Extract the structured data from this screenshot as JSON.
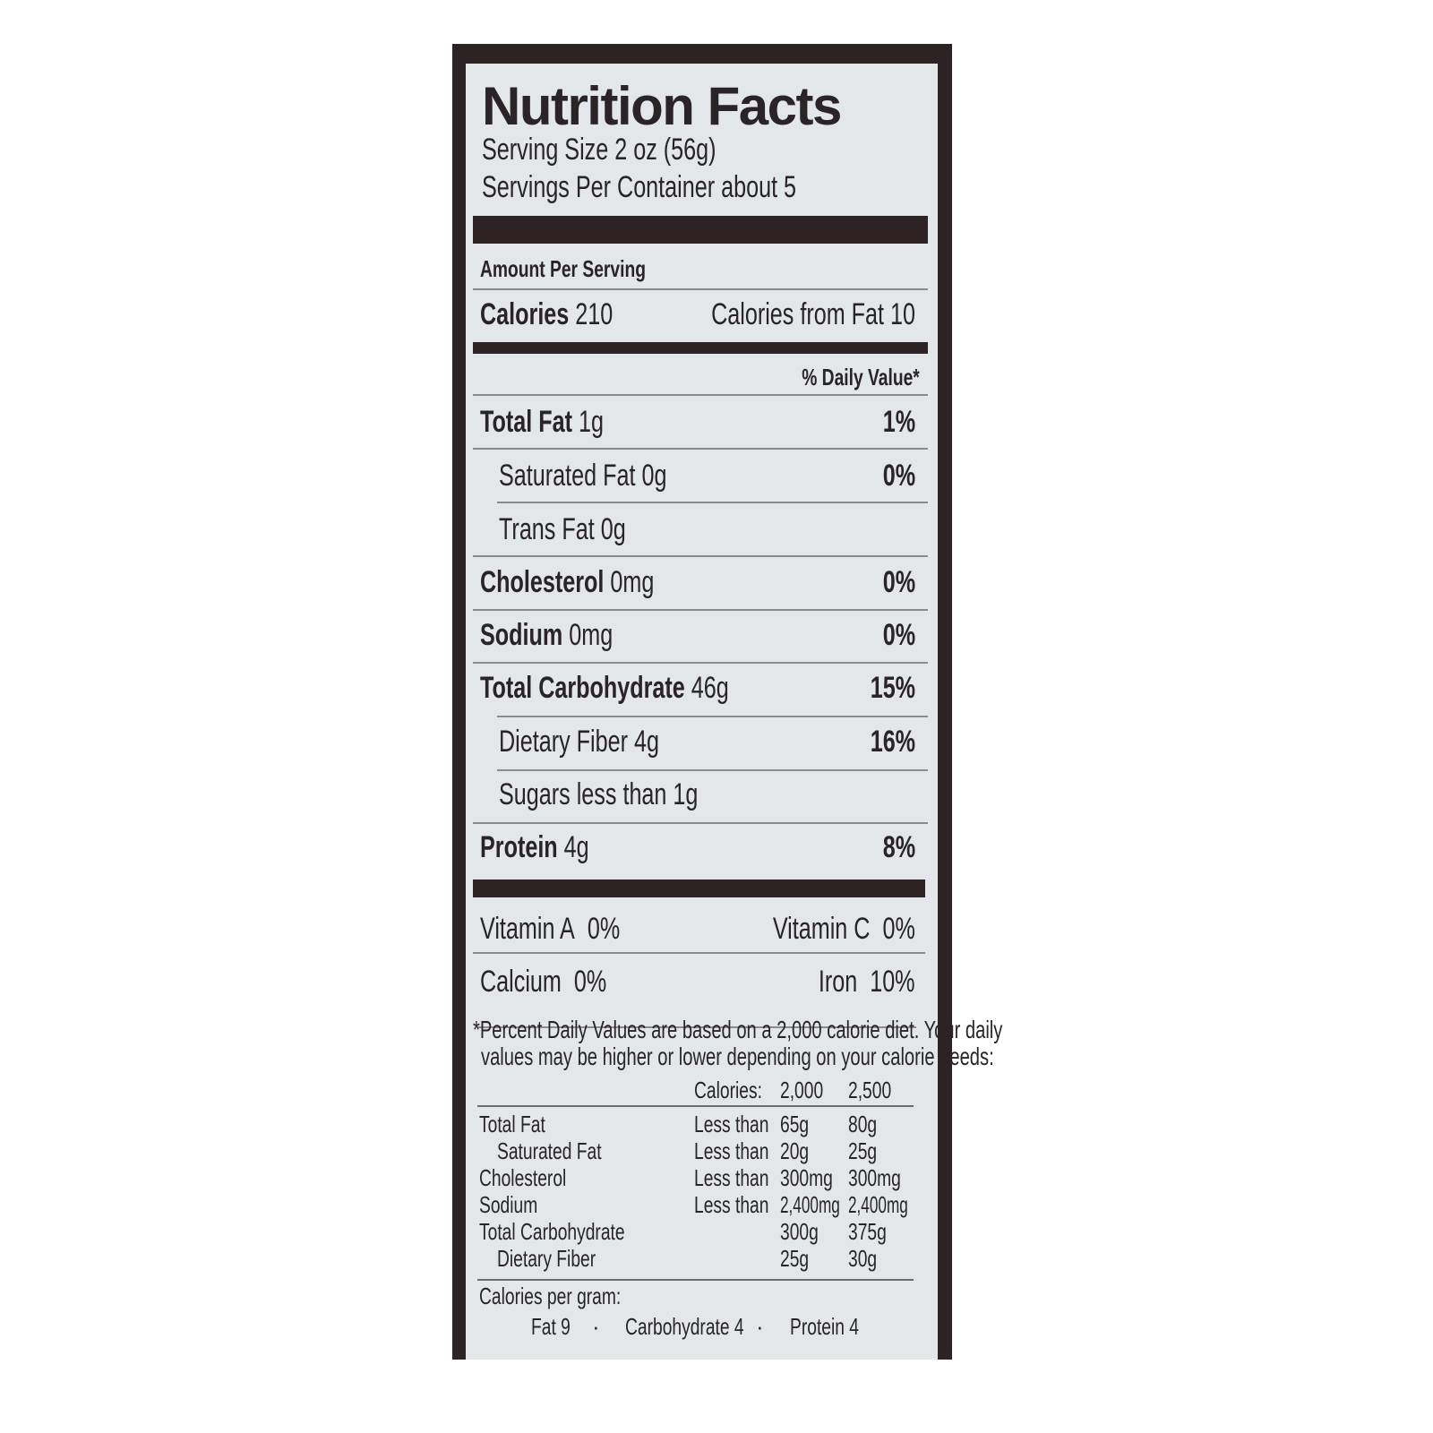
{
  "title": "Nutrition Facts",
  "serving_size": "Serving Size 2 oz (56g)",
  "servings_per_container": "Servings Per Container about 5",
  "amount_per_serving": "Amount Per Serving",
  "calories": {
    "label": "Calories",
    "value": "210",
    "from_fat": "Calories from Fat 10"
  },
  "daily_value_header": "% Daily Value*",
  "nutrients": [
    {
      "label": "Total Fat",
      "amount": "1g",
      "dv": "1%"
    },
    {
      "label": "Saturated Fat",
      "amount": "0g",
      "dv": "0%"
    },
    {
      "label": "Trans Fat",
      "amount": "0g",
      "dv": ""
    },
    {
      "label": "Cholesterol",
      "amount": "0mg",
      "dv": "0%"
    },
    {
      "label": "Sodium",
      "amount": "0mg",
      "dv": "0%"
    },
    {
      "label": "Total Carbohydrate",
      "amount": "46g",
      "dv": "15%"
    },
    {
      "label": "Dietary Fiber",
      "amount": "4g",
      "dv": "16%"
    },
    {
      "label": "Sugars",
      "amount": "less than 1g",
      "dv": ""
    },
    {
      "label": "Protein",
      "amount": "4g",
      "dv": "8%"
    }
  ],
  "vitamins": [
    {
      "label": "Vitamin A",
      "value": "0%"
    },
    {
      "label": "Vitamin C",
      "value": "0%"
    },
    {
      "label": "Calcium",
      "value": "0%"
    },
    {
      "label": "Iron",
      "value": "10%"
    }
  ],
  "footnote": [
    "*Percent Daily Values are based on a 2,000 calorie diet. Your daily",
    "values may be higher or lower depending on your calorie needs:"
  ],
  "reference_table": {
    "header": [
      "Calories:",
      "2,000",
      "2,500"
    ],
    "rows": [
      {
        "label": "Total Fat",
        "qualifier": "Less than",
        "v2000": "65g",
        "v2500": "80g"
      },
      {
        "label": "Saturated Fat",
        "qualifier": "Less than",
        "v2000": "20g",
        "v2500": "25g"
      },
      {
        "label": "Cholesterol",
        "qualifier": "Less than",
        "v2000": "300mg",
        "v2500": "300mg"
      },
      {
        "label": "Sodium",
        "qualifier": "Less than",
        "v2000": "2,400mg",
        "v2500": "2,400mg"
      },
      {
        "label": "Total Carbohydrate",
        "qualifier": "",
        "v2000": "300g",
        "v2500": "375g"
      },
      {
        "label": "Dietary Fiber",
        "qualifier": "",
        "v2000": "25g",
        "v2500": "30g"
      }
    ]
  },
  "calories_per_gram": {
    "label": "Calories per gram:",
    "fat": "Fat 9",
    "carbohydrate": "Carbohydrate 4",
    "protein": "Protein 4",
    "separator": "·"
  },
  "colors": {
    "frame": "#2d2224",
    "panel": "#e3e7ea",
    "text": "#2a2426"
  }
}
